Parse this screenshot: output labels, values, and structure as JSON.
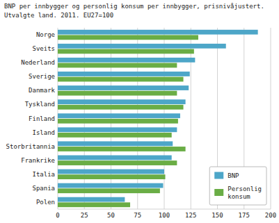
{
  "chart_data": {
    "type": "bar",
    "orientation": "horizontal",
    "title": "BNP per innbygger og personlig konsum per innbygger, prisnivåjustert.",
    "subtitle": "Utvalgte land. 2011. EU27=100",
    "categories": [
      "Norge",
      "Sveits",
      "Nederland",
      "Sverige",
      "Danmark",
      "Tyskland",
      "Finland",
      "Island",
      "Storbritannia",
      "Frankrike",
      "Italia",
      "Spania",
      "Polen"
    ],
    "series": [
      {
        "name": "BNP",
        "color": "#4da6c8",
        "values": [
          188,
          158,
          129,
          124,
          123,
          120,
          115,
          112,
          108,
          107,
          100,
          99,
          63
        ]
      },
      {
        "name": "Personlig\nkonsum",
        "color": "#6aad45",
        "values": [
          132,
          128,
          112,
          118,
          112,
          118,
          113,
          107,
          120,
          112,
          101,
          96,
          68
        ]
      }
    ],
    "xlim": [
      0,
      200
    ],
    "xticks": [
      0,
      25,
      50,
      75,
      100,
      125,
      150,
      175,
      200
    ],
    "grid": true,
    "legend": "lower right"
  }
}
